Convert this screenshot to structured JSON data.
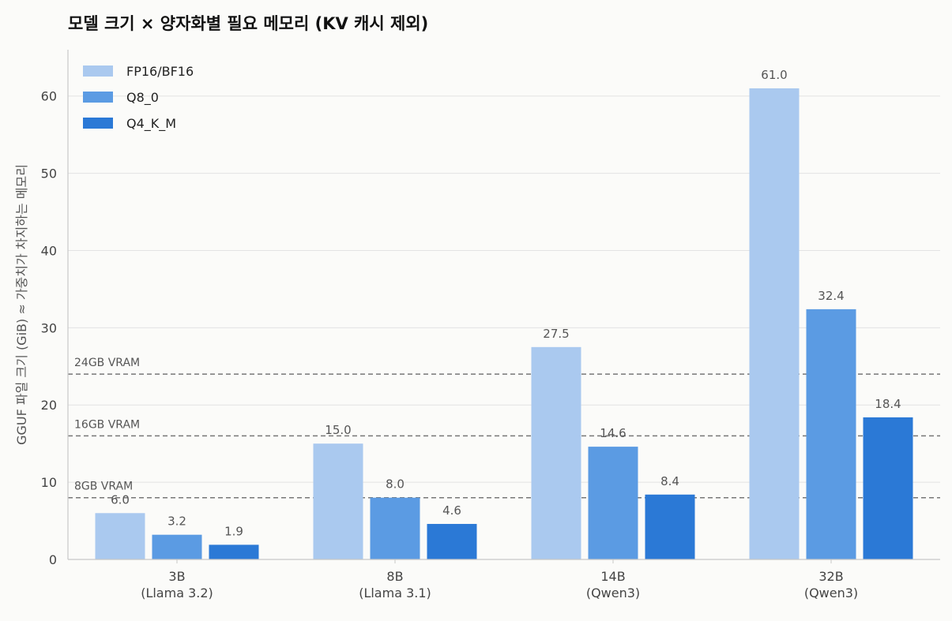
{
  "chart_data": {
    "type": "bar",
    "title": "모델 크기 × 양자화별 필요 메모리 (KV 캐시 제외)",
    "ylabel": "GGUF 파일 크기 (GiB) ≈ 가중치가 차지하는 메모리",
    "xlabel": "",
    "ylim": [
      0,
      66
    ],
    "yticks": [
      0,
      10,
      20,
      30,
      40,
      50,
      60
    ],
    "grid": true,
    "legend_position": "top-left",
    "categories": [
      [
        "3B",
        "(Llama 3.2)"
      ],
      [
        "8B",
        "(Llama 3.1)"
      ],
      [
        "14B",
        "(Qwen3)"
      ],
      [
        "32B",
        "(Qwen3)"
      ]
    ],
    "series": [
      {
        "name": "FP16/BF16",
        "color": "#aac9ef",
        "values": [
          6.0,
          15.0,
          27.5,
          61.0
        ],
        "labels": [
          "6.0",
          "15.0",
          "27.5",
          "61.0"
        ]
      },
      {
        "name": "Q8_0",
        "color": "#5b9be3",
        "values": [
          3.2,
          8.0,
          14.6,
          32.4
        ],
        "labels": [
          "3.2",
          "8.0",
          "14.6",
          "32.4"
        ]
      },
      {
        "name": "Q4_K_M",
        "color": "#2b79d6",
        "values": [
          1.9,
          4.6,
          8.4,
          18.4
        ],
        "labels": [
          "1.9",
          "4.6",
          "8.4",
          "18.4"
        ]
      }
    ],
    "reference_lines": [
      {
        "value": 24,
        "label": "24GB VRAM"
      },
      {
        "value": 16,
        "label": "16GB VRAM"
      },
      {
        "value": 8,
        "label": "8GB VRAM"
      }
    ]
  }
}
